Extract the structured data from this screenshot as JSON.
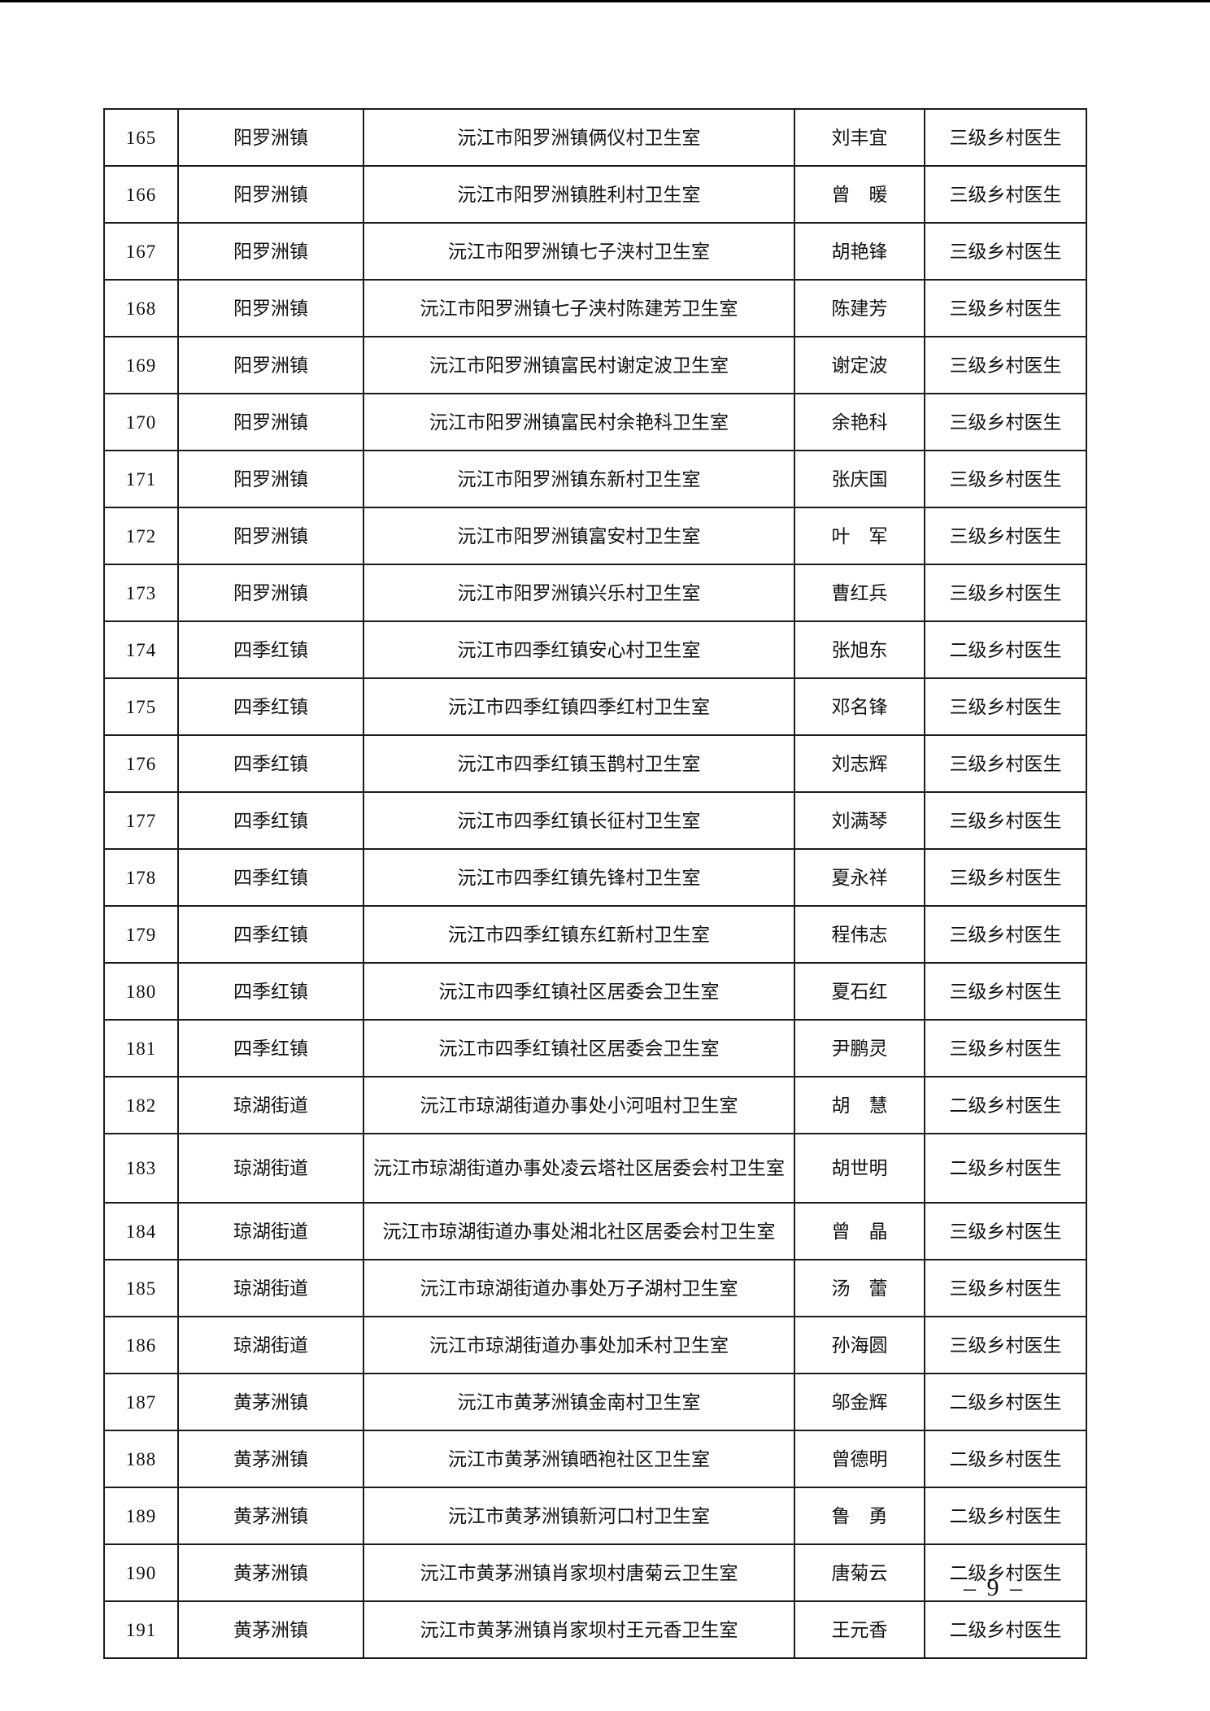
{
  "page": {
    "number_label": "– 9 –"
  },
  "table": {
    "rows": [
      {
        "no": "165",
        "town": "阳罗洲镇",
        "clinic": "沅江市阳罗洲镇俩仪村卫生室",
        "name": "刘丰宜",
        "level": "三级乡村医生"
      },
      {
        "no": "166",
        "town": "阳罗洲镇",
        "clinic": "沅江市阳罗洲镇胜利村卫生室",
        "name": "曾　暖",
        "level": "三级乡村医生"
      },
      {
        "no": "167",
        "town": "阳罗洲镇",
        "clinic": "沅江市阳罗洲镇七子浃村卫生室",
        "name": "胡艳锋",
        "level": "三级乡村医生"
      },
      {
        "no": "168",
        "town": "阳罗洲镇",
        "clinic": "沅江市阳罗洲镇七子浃村陈建芳卫生室",
        "name": "陈建芳",
        "level": "三级乡村医生"
      },
      {
        "no": "169",
        "town": "阳罗洲镇",
        "clinic": "沅江市阳罗洲镇富民村谢定波卫生室",
        "name": "谢定波",
        "level": "三级乡村医生"
      },
      {
        "no": "170",
        "town": "阳罗洲镇",
        "clinic": "沅江市阳罗洲镇富民村余艳科卫生室",
        "name": "余艳科",
        "level": "三级乡村医生"
      },
      {
        "no": "171",
        "town": "阳罗洲镇",
        "clinic": "沅江市阳罗洲镇东新村卫生室",
        "name": "张庆国",
        "level": "三级乡村医生"
      },
      {
        "no": "172",
        "town": "阳罗洲镇",
        "clinic": "沅江市阳罗洲镇富安村卫生室",
        "name": "叶　军",
        "level": "三级乡村医生"
      },
      {
        "no": "173",
        "town": "阳罗洲镇",
        "clinic": "沅江市阳罗洲镇兴乐村卫生室",
        "name": "曹红兵",
        "level": "三级乡村医生"
      },
      {
        "no": "174",
        "town": "四季红镇",
        "clinic": "沅江市四季红镇安心村卫生室",
        "name": "张旭东",
        "level": "二级乡村医生"
      },
      {
        "no": "175",
        "town": "四季红镇",
        "clinic": "沅江市四季红镇四季红村卫生室",
        "name": "邓名锋",
        "level": "三级乡村医生"
      },
      {
        "no": "176",
        "town": "四季红镇",
        "clinic": "沅江市四季红镇玉鹊村卫生室",
        "name": "刘志辉",
        "level": "三级乡村医生"
      },
      {
        "no": "177",
        "town": "四季红镇",
        "clinic": "沅江市四季红镇长征村卫生室",
        "name": "刘满琴",
        "level": "三级乡村医生"
      },
      {
        "no": "178",
        "town": "四季红镇",
        "clinic": "沅江市四季红镇先锋村卫生室",
        "name": "夏永祥",
        "level": "三级乡村医生"
      },
      {
        "no": "179",
        "town": "四季红镇",
        "clinic": "沅江市四季红镇东红新村卫生室",
        "name": "程伟志",
        "level": "三级乡村医生"
      },
      {
        "no": "180",
        "town": "四季红镇",
        "clinic": "沅江市四季红镇社区居委会卫生室",
        "name": "夏石红",
        "level": "三级乡村医生"
      },
      {
        "no": "181",
        "town": "四季红镇",
        "clinic": "沅江市四季红镇社区居委会卫生室",
        "name": "尹鹏灵",
        "level": "三级乡村医生"
      },
      {
        "no": "182",
        "town": "琼湖街道",
        "clinic": "沅江市琼湖街道办事处小河咀村卫生室",
        "name": "胡　慧",
        "level": "二级乡村医生"
      },
      {
        "no": "183",
        "town": "琼湖街道",
        "clinic": "沅江市琼湖街道办事处凌云塔社区居委会村卫生室",
        "name": "胡世明",
        "level": "二级乡村医生"
      },
      {
        "no": "184",
        "town": "琼湖街道",
        "clinic": "沅江市琼湖街道办事处湘北社区居委会村卫生室",
        "name": "曾　晶",
        "level": "三级乡村医生"
      },
      {
        "no": "185",
        "town": "琼湖街道",
        "clinic": "沅江市琼湖街道办事处万子湖村卫生室",
        "name": "汤　蕾",
        "level": "三级乡村医生"
      },
      {
        "no": "186",
        "town": "琼湖街道",
        "clinic": "沅江市琼湖街道办事处加禾村卫生室",
        "name": "孙海圆",
        "level": "三级乡村医生"
      },
      {
        "no": "187",
        "town": "黄茅洲镇",
        "clinic": "沅江市黄茅洲镇金南村卫生室",
        "name": "邬金辉",
        "level": "二级乡村医生"
      },
      {
        "no": "188",
        "town": "黄茅洲镇",
        "clinic": "沅江市黄茅洲镇晒袍社区卫生室",
        "name": "曾德明",
        "level": "二级乡村医生"
      },
      {
        "no": "189",
        "town": "黄茅洲镇",
        "clinic": "沅江市黄茅洲镇新河口村卫生室",
        "name": "鲁　勇",
        "level": "二级乡村医生"
      },
      {
        "no": "190",
        "town": "黄茅洲镇",
        "clinic": "沅江市黄茅洲镇肖家坝村唐菊云卫生室",
        "name": "唐菊云",
        "level": "二级乡村医生"
      },
      {
        "no": "191",
        "town": "黄茅洲镇",
        "clinic": "沅江市黄茅洲镇肖家坝村王元香卫生室",
        "name": "王元香",
        "level": "二级乡村医生"
      }
    ]
  }
}
